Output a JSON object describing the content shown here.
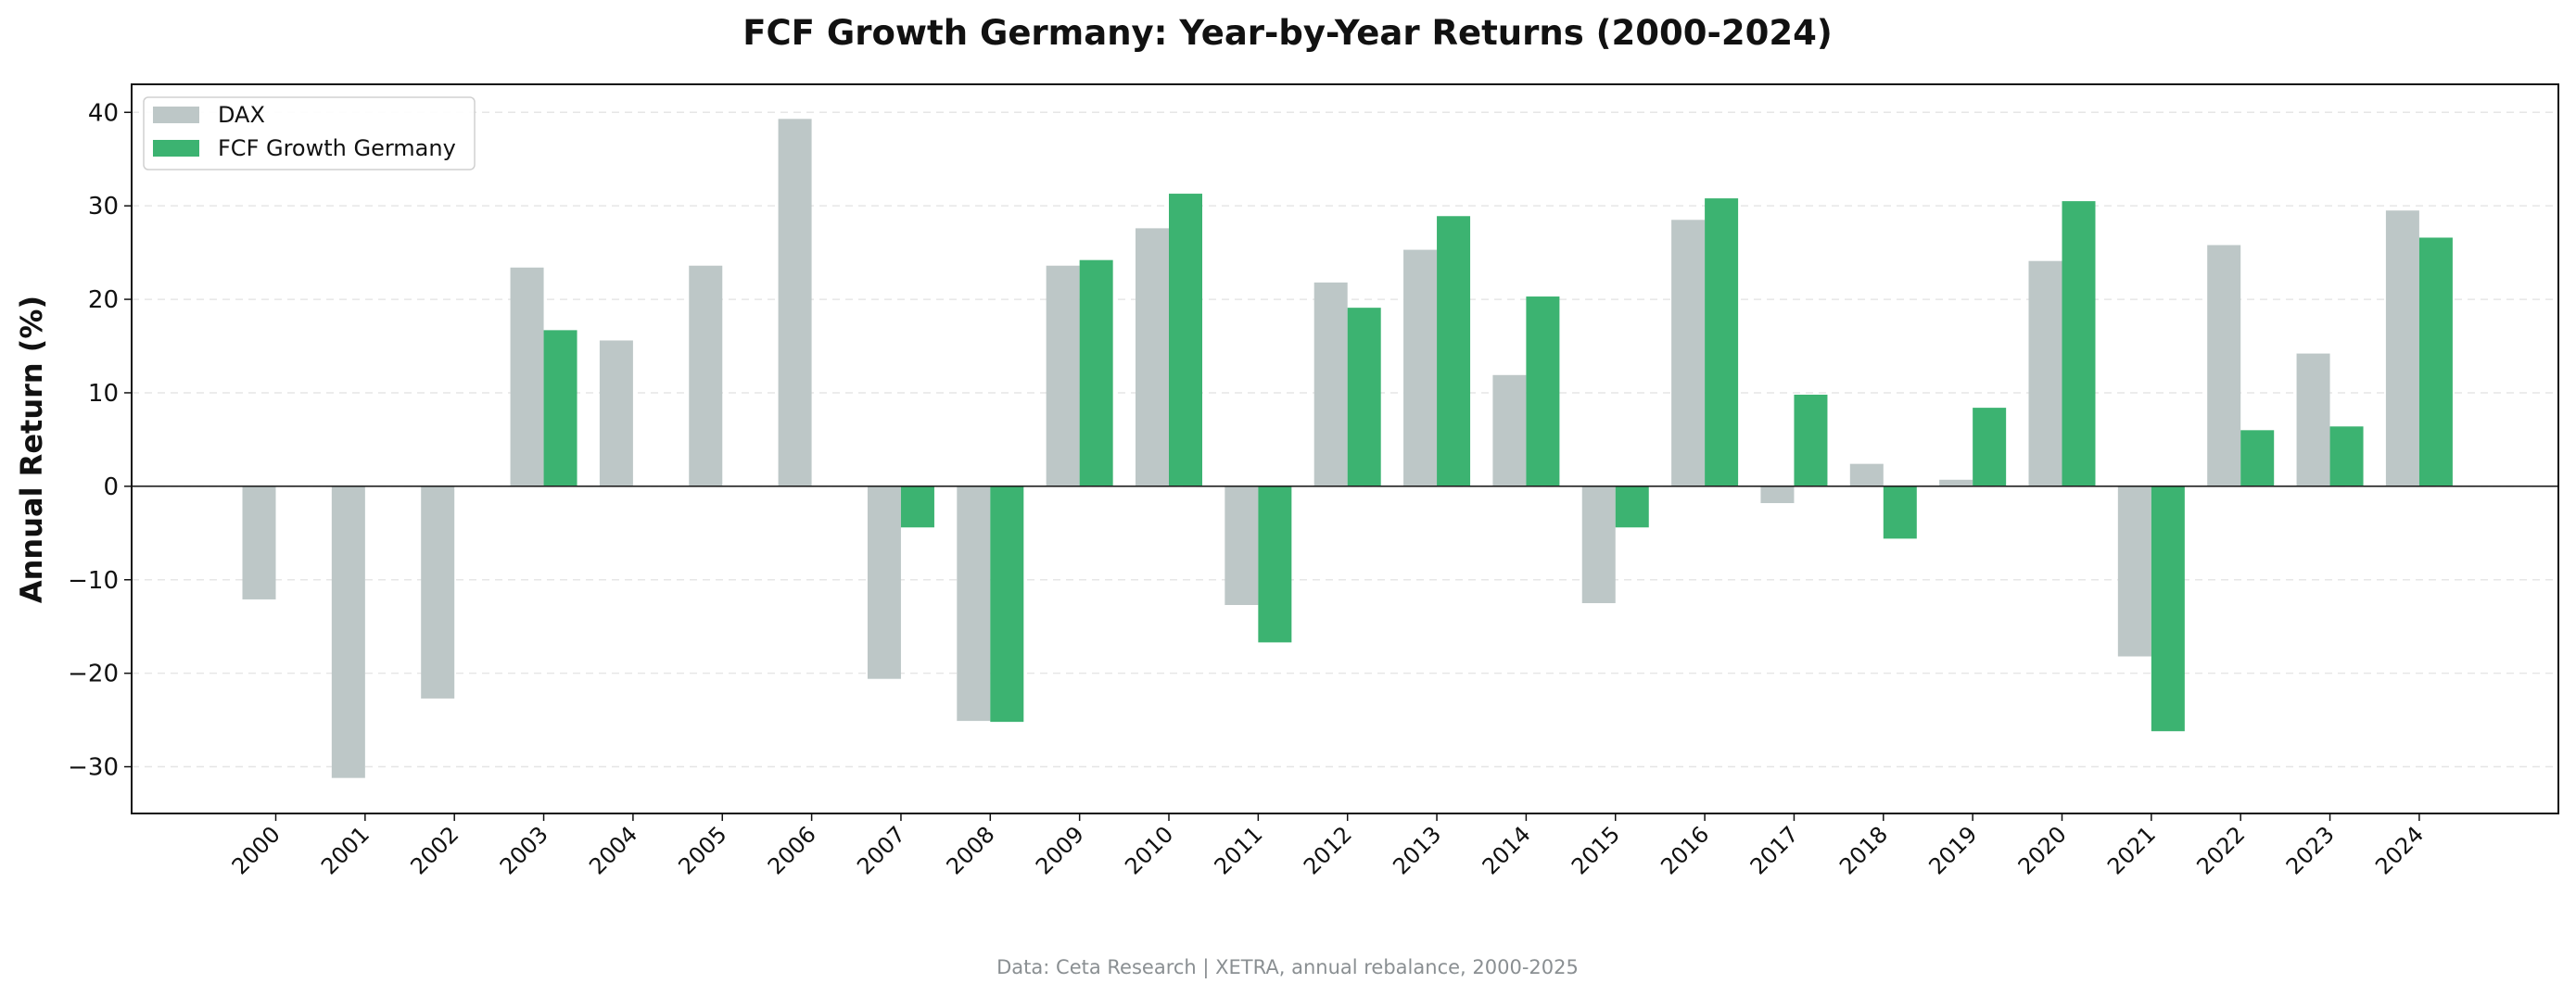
{
  "chart_data": {
    "type": "bar",
    "title": "FCF Growth Germany: Year-by-Year Returns (2000-2024)",
    "xlabel": "",
    "ylabel": "Annual Return (%)",
    "ylim": [
      -35,
      43
    ],
    "yticks": [
      -30,
      -20,
      -10,
      0,
      10,
      20,
      30,
      40
    ],
    "ytick_labels": [
      "−30",
      "−20",
      "−10",
      "0",
      "10",
      "20",
      "30",
      "40"
    ],
    "grid": "horizontal dashed",
    "legend_position": "top-left",
    "categories": [
      "2000",
      "2001",
      "2002",
      "2003",
      "2004",
      "2005",
      "2006",
      "2007",
      "2008",
      "2009",
      "2010",
      "2011",
      "2012",
      "2013",
      "2014",
      "2015",
      "2016",
      "2017",
      "2018",
      "2019",
      "2020",
      "2021",
      "2022",
      "2023",
      "2024"
    ],
    "series": [
      {
        "name": "DAX",
        "color": "#bdc7c7",
        "values": [
          -12.1,
          -31.2,
          -22.7,
          23.4,
          15.6,
          23.6,
          39.3,
          -20.6,
          -25.1,
          23.6,
          27.6,
          -12.7,
          21.8,
          25.3,
          11.9,
          -12.5,
          28.5,
          -1.8,
          2.4,
          0.7,
          24.1,
          -18.2,
          25.8,
          14.2,
          29.5
        ]
      },
      {
        "name": "FCF Growth Germany",
        "color": "#3cb371",
        "values": [
          0,
          0,
          0,
          16.7,
          0,
          0,
          0,
          -4.4,
          -25.2,
          24.2,
          31.3,
          -16.7,
          19.1,
          28.9,
          20.3,
          -4.4,
          30.8,
          9.8,
          -5.6,
          8.4,
          30.5,
          -26.2,
          6.0,
          6.4,
          26.6
        ]
      }
    ],
    "source_note": "Data: Ceta Research | XETRA, annual rebalance, 2000-2025"
  }
}
